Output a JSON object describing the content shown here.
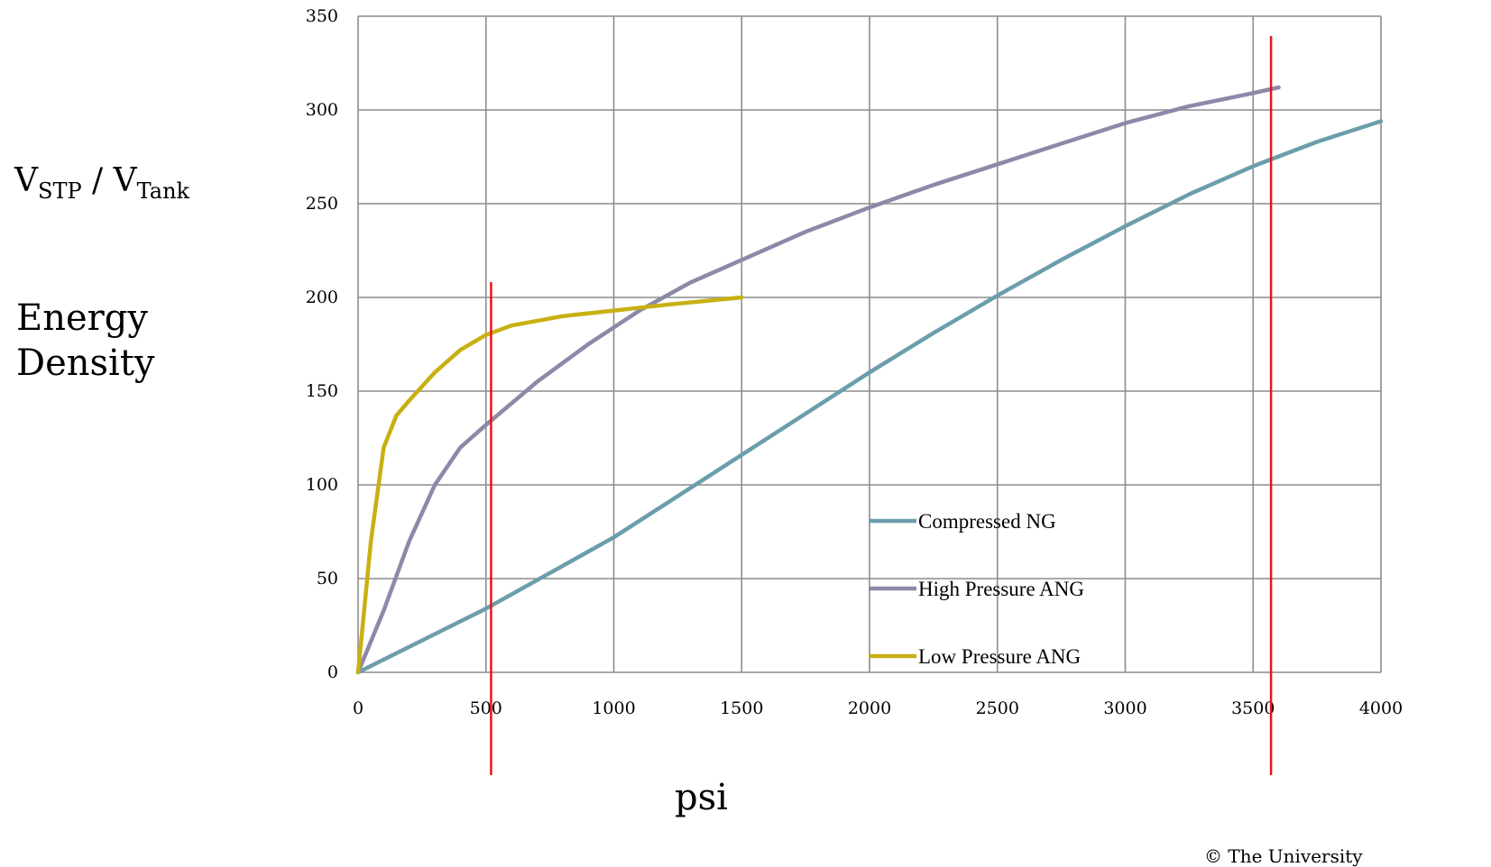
{
  "chart_data": {
    "type": "line",
    "title": "",
    "ylabel": {
      "main": "V",
      "sub1": "STP",
      "sep": " / V",
      "sub2": "Tank",
      "line2": "Energy",
      "line3": "Density"
    },
    "xlabel": "psi",
    "xlim": [
      0,
      4000
    ],
    "ylim": [
      0,
      350
    ],
    "xticks": [
      "0",
      "500",
      "1000",
      "1500",
      "2000",
      "2500",
      "3000",
      "3500",
      "4000"
    ],
    "yticks": [
      "0",
      "50",
      "100",
      "150",
      "200",
      "250",
      "300",
      "350"
    ],
    "grid": true,
    "legend_position": "bottom-right inside plot",
    "series": [
      {
        "name": "Compressed NG",
        "color": "#6b9eac",
        "x": [
          0,
          250,
          500,
          750,
          1000,
          1250,
          1500,
          1750,
          2000,
          2250,
          2500,
          2750,
          3000,
          3250,
          3500,
          3750,
          4000
        ],
        "y": [
          0,
          17,
          34,
          53,
          72,
          94,
          116,
          138,
          160,
          181,
          201,
          220,
          238,
          255,
          270,
          283,
          294
        ]
      },
      {
        "name": "High Pressure ANG",
        "color": "#8e88a8",
        "x": [
          0,
          100,
          200,
          300,
          400,
          500,
          700,
          900,
          1100,
          1300,
          1500,
          1750,
          2000,
          2250,
          2500,
          2750,
          3000,
          3250,
          3500,
          3600
        ],
        "y": [
          0,
          33,
          70,
          100,
          120,
          132,
          155,
          175,
          193,
          208,
          220,
          235,
          248,
          260,
          271,
          282,
          293,
          302,
          309,
          312
        ]
      },
      {
        "name": "Low Pressure ANG",
        "color": "#c8b013",
        "x": [
          0,
          50,
          100,
          150,
          200,
          300,
          400,
          500,
          600,
          800,
          1000,
          1200,
          1500
        ],
        "y": [
          0,
          70,
          120,
          137,
          145,
          160,
          172,
          180,
          185,
          190,
          193,
          196,
          200
        ]
      }
    ],
    "annotations": {
      "reference_lines": [
        {
          "x": 520,
          "color": "#e8141c"
        },
        {
          "x": 3570,
          "color": "#e8141c"
        }
      ]
    }
  },
  "footer": {
    "copyright": "© The University"
  }
}
